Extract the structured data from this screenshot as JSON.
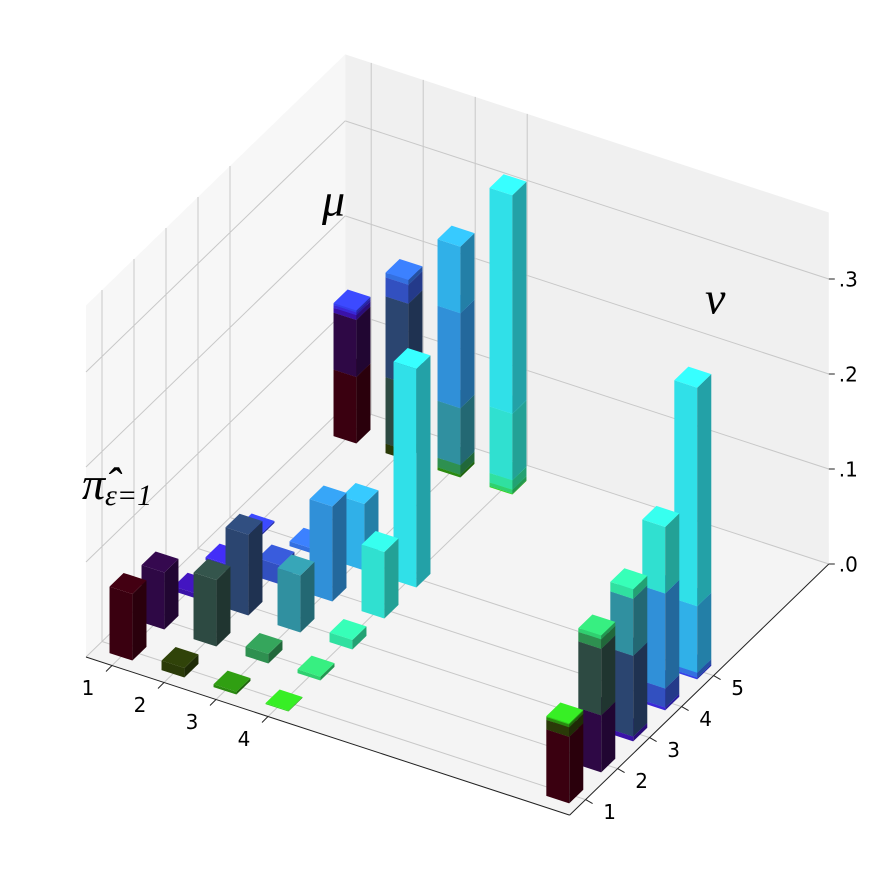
{
  "chart_data": {
    "type": "bar3d",
    "mu_label": "μ",
    "nu_label": "ν",
    "pi_label": "π̂",
    "pi_label_sub": "ε=1",
    "xlim": [
      0.5,
      9.8
    ],
    "ylim": [
      0.5,
      8.6
    ],
    "zlim": [
      0,
      0.37
    ],
    "xticks": [
      1,
      2,
      3,
      4
    ],
    "yticks": [
      1,
      2,
      3,
      4,
      5
    ],
    "zticks": [
      {
        "value": 0,
        "label": ".0"
      },
      {
        "value": 0.1,
        "label": ".1"
      },
      {
        "value": 0.2,
        "label": ".2"
      },
      {
        "value": 0.3,
        "label": ".3"
      }
    ],
    "grid": true,
    "pi": [
      [
        0.07,
        0.06,
        0.005,
        0.003,
        0.002
      ],
      [
        0.01,
        0.07,
        0.085,
        0.02,
        0.005
      ],
      [
        0.003,
        0.01,
        0.06,
        0.1,
        0.07
      ],
      [
        0.001,
        0.004,
        0.01,
        0.07,
        0.23
      ]
    ],
    "colors": [
      [
        "#3a0010",
        "#2e0845",
        "#3a12a8",
        "#3a28d8",
        "#3440e8"
      ],
      [
        "#2a3a08",
        "#2d4a42",
        "#2b4570",
        "#3250c0",
        "#3470e0"
      ],
      [
        "#2a8a10",
        "#2e9050",
        "#3090a0",
        "#3090d8",
        "#30b0e8"
      ],
      [
        "#30d020",
        "#30d070",
        "#30e0a0",
        "#30e0d0",
        "#30e0e8"
      ]
    ]
  }
}
